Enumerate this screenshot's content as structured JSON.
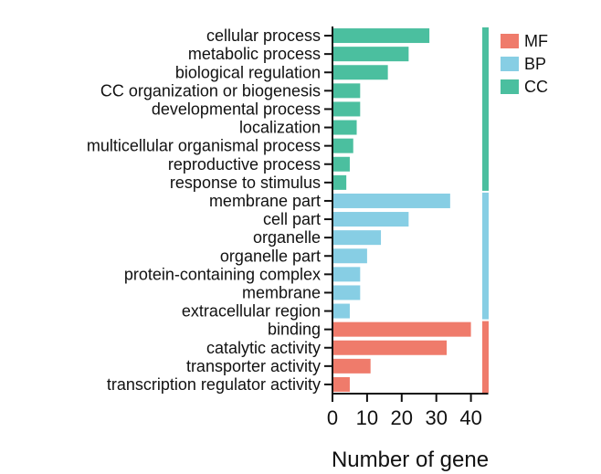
{
  "chart_data": {
    "type": "bar",
    "orientation": "horizontal",
    "xlabel": "Number of gene",
    "xlim": [
      0,
      45
    ],
    "xticks": [
      0,
      10,
      20,
      30,
      40
    ],
    "grid": false,
    "legend_position": "top-right",
    "colors": {
      "MF": "#ef7b6b",
      "BP": "#87cee4",
      "CC": "#4bbf9f"
    },
    "legend": [
      {
        "name": "MF",
        "color": "#ef7b6b"
      },
      {
        "name": "BP",
        "color": "#87cee4"
      },
      {
        "name": "CC",
        "color": "#4bbf9f"
      }
    ],
    "categories": [
      {
        "label": "cellular process",
        "value": 28,
        "group": "CC"
      },
      {
        "label": "metabolic process",
        "value": 22,
        "group": "CC"
      },
      {
        "label": "biological regulation",
        "value": 16,
        "group": "CC"
      },
      {
        "label": "CC organization or biogenesis",
        "value": 8,
        "group": "CC"
      },
      {
        "label": "developmental process",
        "value": 8,
        "group": "CC"
      },
      {
        "label": "localization",
        "value": 7,
        "group": "CC"
      },
      {
        "label": "multicellular organismal process",
        "value": 6,
        "group": "CC"
      },
      {
        "label": "reproductive process",
        "value": 5,
        "group": "CC"
      },
      {
        "label": "response to stimulus",
        "value": 4,
        "group": "CC"
      },
      {
        "label": "membrane part",
        "value": 34,
        "group": "BP"
      },
      {
        "label": "cell part",
        "value": 22,
        "group": "BP"
      },
      {
        "label": "organelle",
        "value": 14,
        "group": "BP"
      },
      {
        "label": "organelle part",
        "value": 10,
        "group": "BP"
      },
      {
        "label": "protein-containing complex",
        "value": 8,
        "group": "BP"
      },
      {
        "label": "membrane",
        "value": 8,
        "group": "BP"
      },
      {
        "label": "extracellular region",
        "value": 5,
        "group": "BP"
      },
      {
        "label": "binding",
        "value": 40,
        "group": "MF"
      },
      {
        "label": "catalytic activity",
        "value": 33,
        "group": "MF"
      },
      {
        "label": "transporter activity",
        "value": 11,
        "group": "MF"
      },
      {
        "label": "transcription regulator activity",
        "value": 5,
        "group": "MF"
      }
    ]
  }
}
